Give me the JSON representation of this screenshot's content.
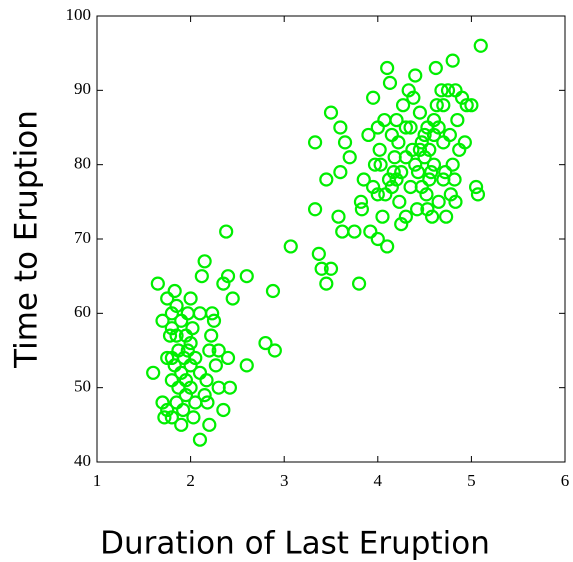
{
  "chart_data": {
    "type": "scatter",
    "xlabel": "Duration of Last Eruption",
    "ylabel": "Time to Eruption",
    "color": "#00ee00",
    "x": [
      1.65,
      1.6,
      1.7,
      1.75,
      1.75,
      1.75,
      1.8,
      1.8,
      1.8,
      1.8,
      1.8,
      1.83,
      1.83,
      1.85,
      1.85,
      1.87,
      1.87,
      1.9,
      1.9,
      1.9,
      1.92,
      1.93,
      1.95,
      1.95,
      1.97,
      1.97,
      2.0,
      2.0,
      2.0,
      2.0,
      2.02,
      2.03,
      2.05,
      2.1,
      2.1,
      2.1,
      2.12,
      2.15,
      2.17,
      2.18,
      2.2,
      2.2,
      2.22,
      2.23,
      2.25,
      2.27,
      2.3,
      2.3,
      2.35,
      2.35,
      2.38,
      2.4,
      2.4,
      2.42,
      2.45,
      2.6,
      2.6,
      2.8,
      2.9,
      2.88,
      1.78,
      1.85,
      1.95,
      2.05,
      2.15,
      1.7,
      1.72,
      3.07,
      3.33,
      3.33,
      3.37,
      3.4,
      3.45,
      3.5,
      3.45,
      3.5,
      3.6,
      3.6,
      3.58,
      3.62,
      3.65,
      3.7,
      3.75,
      3.8,
      3.82,
      3.83,
      3.85,
      3.9,
      3.92,
      3.95,
      3.97,
      4.0,
      4.0,
      4.02,
      4.03,
      4.05,
      4.07,
      4.08,
      4.1,
      4.1,
      4.12,
      4.13,
      4.15,
      4.17,
      4.18,
      4.2,
      4.22,
      4.23,
      4.25,
      4.27,
      4.3,
      4.3,
      4.33,
      4.35,
      4.35,
      4.37,
      4.38,
      4.4,
      4.4,
      4.42,
      4.43,
      4.45,
      4.47,
      4.5,
      4.5,
      4.52,
      4.53,
      4.53,
      4.55,
      4.57,
      4.58,
      4.6,
      4.6,
      4.62,
      4.63,
      4.65,
      4.65,
      4.68,
      4.7,
      4.7,
      4.72,
      4.73,
      4.75,
      4.77,
      4.78,
      4.8,
      4.8,
      4.82,
      4.83,
      4.85,
      4.87,
      4.9,
      4.93,
      4.95,
      5.0,
      5.05,
      5.07,
      5.1,
      4.3,
      4.45,
      4.55,
      4.15,
      4.0,
      3.95,
      4.25,
      4.47,
      4.7,
      4.83,
      4.2,
      4.6
    ],
    "values": [
      64,
      52,
      59,
      54,
      47,
      62,
      54,
      51,
      60,
      46,
      58,
      63,
      53,
      48,
      57,
      55,
      50,
      45,
      52,
      59,
      47,
      54,
      51,
      49,
      55,
      60,
      50,
      53,
      56,
      62,
      58,
      46,
      54,
      43,
      52,
      60,
      65,
      67,
      51,
      48,
      55,
      45,
      57,
      60,
      59,
      53,
      55,
      50,
      47,
      64,
      71,
      65,
      54,
      50,
      62,
      65,
      53,
      56,
      55,
      63,
      57,
      61,
      57,
      48,
      49,
      48,
      46,
      69,
      83,
      74,
      68,
      66,
      64,
      66,
      78,
      87,
      79,
      85,
      73,
      71,
      83,
      81,
      71,
      64,
      75,
      74,
      78,
      84,
      71,
      89,
      80,
      70,
      76,
      82,
      80,
      73,
      86,
      76,
      93,
      69,
      78,
      91,
      84,
      79,
      81,
      78,
      83,
      75,
      79,
      88,
      73,
      85,
      90,
      85,
      77,
      82,
      89,
      92,
      80,
      74,
      79,
      87,
      77,
      84,
      81,
      76,
      85,
      74,
      82,
      79,
      73,
      84,
      80,
      93,
      88,
      85,
      75,
      90,
      88,
      83,
      79,
      73,
      90,
      84,
      76,
      94,
      80,
      78,
      90,
      86,
      82,
      89,
      83,
      88,
      88,
      77,
      76,
      96,
      81,
      82,
      78,
      77,
      85,
      77,
      72,
      83,
      78,
      75,
      86,
      86
    ],
    "xlim": [
      1,
      6
    ],
    "xticks": [
      1,
      2,
      3,
      4,
      5,
      6
    ],
    "ylim": [
      40,
      100
    ],
    "yticks": [
      40,
      50,
      60,
      70,
      80,
      90,
      100
    ]
  }
}
